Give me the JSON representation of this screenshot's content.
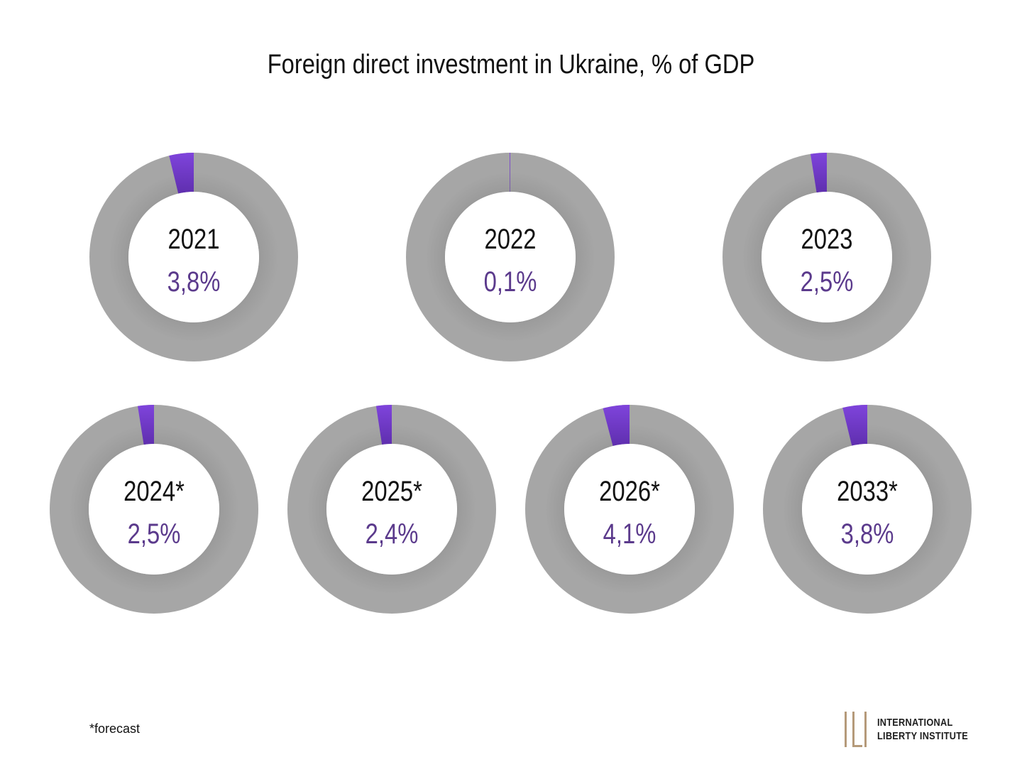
{
  "title": "Foreign direct investment in Ukraine, % of GDP",
  "footnote": "*forecast",
  "logo": {
    "line1": "International",
    "line2": "Liberty Institute",
    "color": "#b59a7a"
  },
  "colors": {
    "ring": "#9a9a9a",
    "ring_shadow": "#7a7a7a",
    "slice": "#7b3fd6",
    "slice_dark": "#5a2aa8",
    "value_text": "#5b3a8c"
  },
  "chart_data": {
    "type": "pie",
    "variant": "donut",
    "title": "Foreign direct investment in Ukraine, % of GDP",
    "items": [
      {
        "year": "2021",
        "value": 3.8,
        "label": "3,8%"
      },
      {
        "year": "2022",
        "value": 0.1,
        "label": "0,1%"
      },
      {
        "year": "2023",
        "value": 2.5,
        "label": "2,5%"
      },
      {
        "year": "2024*",
        "value": 2.5,
        "label": "2,5%"
      },
      {
        "year": "2025*",
        "value": 2.4,
        "label": "2,4%"
      },
      {
        "year": "2026*",
        "value": 4.1,
        "label": "4,1%"
      },
      {
        "year": "2033*",
        "value": 3.8,
        "label": "3,8%"
      }
    ],
    "total": 100
  }
}
